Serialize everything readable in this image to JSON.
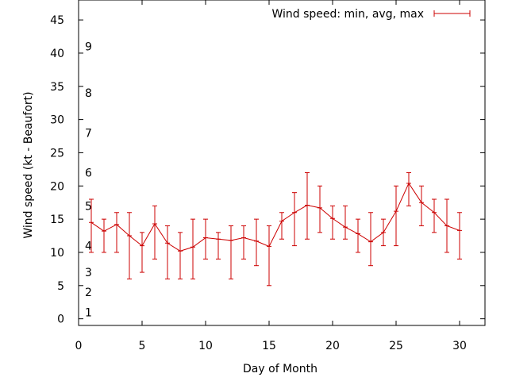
{
  "chart_data": {
    "type": "line",
    "title": "",
    "xlabel": "Day of Month",
    "ylabel": "Wind speed (kt - Beaufort)",
    "xlim": [
      0,
      32
    ],
    "ylim": [
      -1,
      48
    ],
    "x_ticks": [
      0,
      5,
      10,
      15,
      20,
      25,
      30
    ],
    "y_ticks": [
      0,
      5,
      10,
      15,
      20,
      25,
      30,
      35,
      40,
      45
    ],
    "beaufort_labels": [
      {
        "text": "1",
        "y": 1
      },
      {
        "text": "2",
        "y": 4
      },
      {
        "text": "3",
        "y": 7
      },
      {
        "text": "4",
        "y": 11
      },
      {
        "text": "5",
        "y": 17
      },
      {
        "text": "6",
        "y": 22
      },
      {
        "text": "7",
        "y": 28
      },
      {
        "text": "8",
        "y": 34
      },
      {
        "text": "9",
        "y": 41
      }
    ],
    "legend_position": "top-right",
    "grid": false,
    "series": [
      {
        "name": "Wind speed: min, avg, max",
        "color": "#cc0000",
        "x": [
          1,
          2,
          3,
          4,
          5,
          6,
          7,
          8,
          9,
          10,
          11,
          12,
          13,
          14,
          15,
          16,
          17,
          18,
          19,
          20,
          21,
          22,
          23,
          24,
          25,
          26,
          27,
          28,
          29,
          30
        ],
        "avg": [
          14.5,
          13.2,
          14.2,
          12.5,
          11.0,
          14.3,
          11.4,
          10.2,
          10.8,
          12.2,
          12.0,
          11.8,
          12.2,
          11.7,
          10.9,
          14.7,
          16.0,
          17.1,
          16.7,
          15.1,
          13.8,
          12.8,
          11.6,
          13.0,
          16.2,
          20.4,
          17.5,
          16.0,
          14.0,
          13.3
        ],
        "min": [
          10,
          10,
          10,
          6,
          7,
          9,
          6,
          6,
          6,
          9,
          9,
          6,
          9,
          8,
          5,
          12,
          11,
          12,
          13,
          12,
          12,
          10,
          8,
          11,
          11,
          17,
          14,
          13,
          10,
          9
        ],
        "max": [
          18,
          15,
          16,
          16,
          13,
          17,
          14,
          13,
          15,
          15,
          13,
          14,
          14,
          15,
          14,
          16,
          19,
          22,
          20,
          17,
          17,
          15,
          16,
          15,
          20,
          22,
          20,
          18,
          18,
          16
        ]
      }
    ]
  }
}
